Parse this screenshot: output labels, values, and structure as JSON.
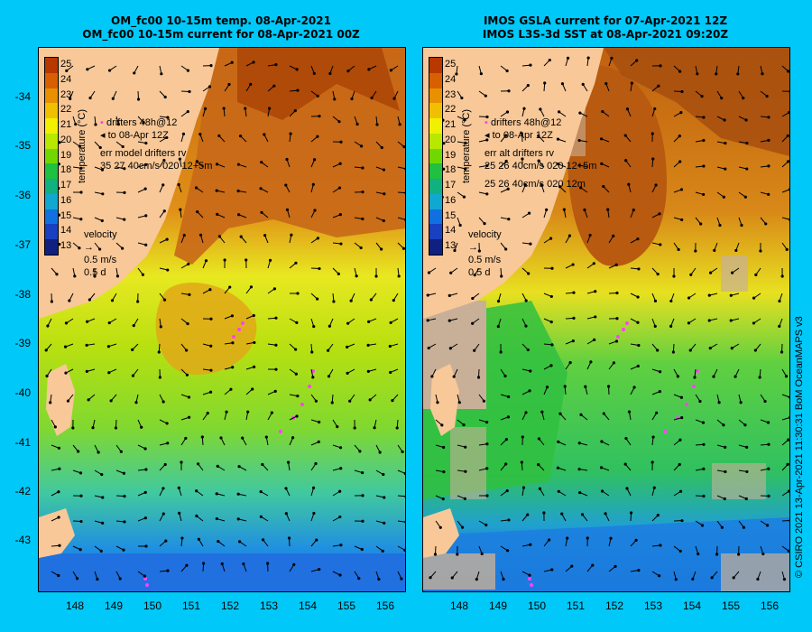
{
  "left_panel": {
    "title_line1": "OM_fc00 10-15m temp. 08-Apr-2021",
    "title_line2": "OM_fc00 10-15m current for 08-Apr-2021 00Z",
    "legend_drifters_a": "drifters 48h@12",
    "legend_drifters_b": "to 08-Apr 12Z",
    "legend_err1": "err model drifters rv",
    "legend_err2": "35 27 40cm/s 020 12+5m",
    "velocity_title": "velocity",
    "velocity_speed": "0.5 m/s",
    "velocity_time": "0.5 d"
  },
  "right_panel": {
    "title_line1": "IMOS GSLA current for 07-Apr-2021 12Z",
    "title_line2": "IMOS L3S-3d SST at 08-Apr-2021 09:20Z",
    "legend_drifters_a": "drifters 48h@12",
    "legend_drifters_b": "to 08-Apr 12Z",
    "legend_err1": "err alt drifters rv",
    "legend_err2": "25 26 40cm/s 020 12+5m",
    "legend_err3": "25 26 40cm/s 020 12m",
    "velocity_title": "velocity",
    "velocity_speed": "0.5 m/s",
    "velocity_time": "0.5 d"
  },
  "colorbar": {
    "title": "temperature (°C)",
    "ticks": [
      "25",
      "24",
      "23",
      "22",
      "21",
      "20",
      "19",
      "18",
      "17",
      "16",
      "15",
      "14",
      "13"
    ],
    "colors": [
      "#b83800",
      "#d86000",
      "#e89000",
      "#f0c000",
      "#f0f000",
      "#b8e800",
      "#70d800",
      "#20c040",
      "#10b080",
      "#10a8d0",
      "#1070e0",
      "#1840c0",
      "#102080"
    ]
  },
  "axes": {
    "lat_ticks": [
      "-34",
      "-35",
      "-36",
      "-37",
      "-38",
      "-39",
      "-40",
      "-41",
      "-42",
      "-43"
    ],
    "lon_ticks": [
      "148",
      "149",
      "150",
      "151",
      "152",
      "153",
      "154",
      "155",
      "156"
    ]
  },
  "credit": "© CSIRO 2021   13-Apr-2021 11:30:31 BoM OceanMAPS v3",
  "colors": {
    "background": "#00c8f8",
    "land": "#f8c898",
    "drifter": "#ff40ff"
  }
}
